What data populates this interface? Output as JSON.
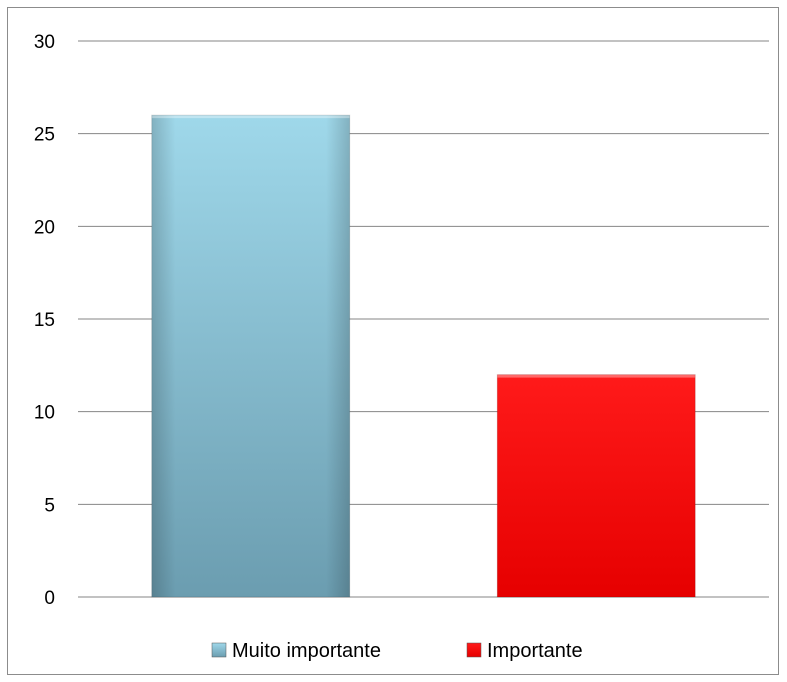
{
  "chart_data": {
    "type": "bar",
    "categories": [
      "Muito importante",
      "Importante"
    ],
    "series": [
      {
        "name": "Muito importante",
        "values": [
          26,
          null
        ],
        "color": "#78b8cc"
      },
      {
        "name": "Importante",
        "values": [
          null,
          12
        ],
        "color": "#ff0000"
      }
    ],
    "title": "",
    "xlabel": "",
    "ylabel": "",
    "ylim": [
      0,
      30
    ],
    "yticks": [
      "0",
      "5",
      "10",
      "15",
      "20",
      "25",
      "30"
    ],
    "grid": true,
    "legend": "bottom"
  },
  "colors": {
    "gridline": "#868686",
    "muito_top": "#9fd8ea",
    "muito_bottom": "#6b9db0",
    "importante_top": "#ff1a1a",
    "importante_bottom": "#e60000"
  }
}
